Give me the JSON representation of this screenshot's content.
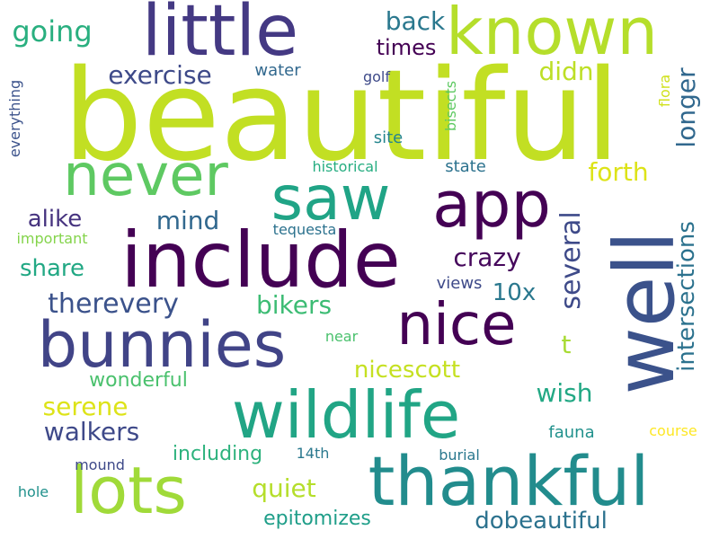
{
  "words": [
    {
      "text": "beautiful",
      "color": "#c2df23",
      "vertical": false
    },
    {
      "text": "well",
      "color": "#3b528b",
      "vertical": true
    },
    {
      "text": "include",
      "color": "#440154",
      "vertical": false
    },
    {
      "text": "little",
      "color": "#443983",
      "vertical": false
    },
    {
      "text": "known",
      "color": "#b5de2b",
      "vertical": false
    },
    {
      "text": "app",
      "color": "#440154",
      "vertical": false
    },
    {
      "text": "saw",
      "color": "#20a486",
      "vertical": false
    },
    {
      "text": "never",
      "color": "#5ec962",
      "vertical": false
    },
    {
      "text": "bunnies",
      "color": "#414487",
      "vertical": false
    },
    {
      "text": "nice",
      "color": "#440154",
      "vertical": false
    },
    {
      "text": "wildlife",
      "color": "#21a585",
      "vertical": false
    },
    {
      "text": "lots",
      "color": "#a0da39",
      "vertical": false
    },
    {
      "text": "thankful",
      "color": "#228c8d",
      "vertical": false
    },
    {
      "text": "intersections",
      "color": "#2c728e",
      "vertical": true
    },
    {
      "text": "several",
      "color": "#3e4a89",
      "vertical": true
    },
    {
      "text": "longer",
      "color": "#31688e",
      "vertical": true
    },
    {
      "text": "going",
      "color": "#29af7f",
      "vertical": false
    },
    {
      "text": "back",
      "color": "#2a788e",
      "vertical": false
    },
    {
      "text": "times",
      "color": "#440154",
      "vertical": false
    },
    {
      "text": "exercise",
      "color": "#3e4a89",
      "vertical": false
    },
    {
      "text": "didn",
      "color": "#bddf26",
      "vertical": false
    },
    {
      "text": "forth",
      "color": "#dde318",
      "vertical": false
    },
    {
      "text": "crazy",
      "color": "#46085c",
      "vertical": false
    },
    {
      "text": "alike",
      "color": "#46337f",
      "vertical": false
    },
    {
      "text": "mind",
      "color": "#31688e",
      "vertical": false
    },
    {
      "text": "share",
      "color": "#22a884",
      "vertical": false
    },
    {
      "text": "therevery",
      "color": "#3b528b",
      "vertical": false
    },
    {
      "text": "bikers",
      "color": "#3dbc74",
      "vertical": false
    },
    {
      "text": "10x",
      "color": "#2a788e",
      "vertical": false
    },
    {
      "text": "t",
      "color": "#a8db34",
      "vertical": false
    },
    {
      "text": "nicescott",
      "color": "#c5e021",
      "vertical": false
    },
    {
      "text": "wish",
      "color": "#22a884",
      "vertical": false
    },
    {
      "text": "serene",
      "color": "#dde318",
      "vertical": false
    },
    {
      "text": "walkers",
      "color": "#3e4989",
      "vertical": false
    },
    {
      "text": "wonderful",
      "color": "#4ac16d",
      "vertical": false
    },
    {
      "text": "quiet",
      "color": "#b5de2b",
      "vertical": false
    },
    {
      "text": "including",
      "color": "#2db27d",
      "vertical": false
    },
    {
      "text": "epitomizes",
      "color": "#1f9e89",
      "vertical": false
    },
    {
      "text": "dobeautiful",
      "color": "#2c728e",
      "vertical": false
    },
    {
      "text": "water",
      "color": "#31688e",
      "vertical": false
    },
    {
      "text": "golf",
      "color": "#3e4a89",
      "vertical": false
    },
    {
      "text": "everything",
      "color": "#3b528b",
      "vertical": true
    },
    {
      "text": "bisects",
      "color": "#5ec962",
      "vertical": true
    },
    {
      "text": "flora",
      "color": "#d0e11c",
      "vertical": true
    },
    {
      "text": "site",
      "color": "#25858e",
      "vertical": false
    },
    {
      "text": "historical",
      "color": "#26ad81",
      "vertical": false
    },
    {
      "text": "state",
      "color": "#2c728e",
      "vertical": false
    },
    {
      "text": "important",
      "color": "#84d44b",
      "vertical": false
    },
    {
      "text": "tequesta",
      "color": "#2c728e",
      "vertical": false
    },
    {
      "text": "views",
      "color": "#3e4a89",
      "vertical": false
    },
    {
      "text": "near",
      "color": "#4ac16d",
      "vertical": false
    },
    {
      "text": "fauna",
      "color": "#21918c",
      "vertical": false
    },
    {
      "text": "course",
      "color": "#fde725",
      "vertical": false
    },
    {
      "text": "burial",
      "color": "#2a788e",
      "vertical": false
    },
    {
      "text": "14th",
      "color": "#2a788e",
      "vertical": false
    },
    {
      "text": "mound",
      "color": "#3e4989",
      "vertical": false
    },
    {
      "text": "hole",
      "color": "#21918c",
      "vertical": false
    }
  ]
}
